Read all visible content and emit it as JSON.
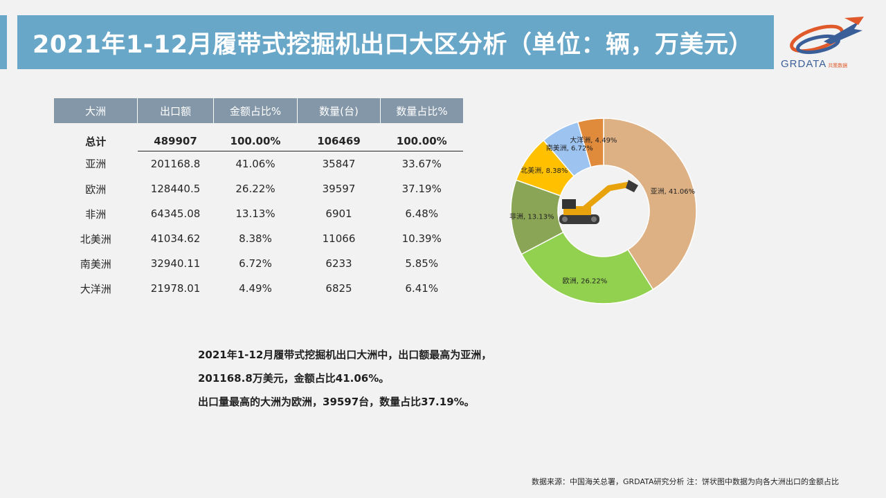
{
  "title": "2021年1-12月履带式挖掘机出口大区分析（单位：辆，万美元）",
  "logo": {
    "name": "GRDATA",
    "sub": "共策数据"
  },
  "table": {
    "headers": [
      "大洲",
      "出口额",
      "金额占比%",
      "数量(台)",
      "数量占比%"
    ],
    "total": [
      "总计",
      "489907",
      "100.00%",
      "106469",
      "100.00%"
    ],
    "rows": [
      [
        "亚洲",
        "201168.8",
        "41.06%",
        "35847",
        "33.67%"
      ],
      [
        "欧洲",
        "128440.5",
        "26.22%",
        "39597",
        "37.19%"
      ],
      [
        "非洲",
        "64345.08",
        "13.13%",
        "6901",
        "6.48%"
      ],
      [
        "北美洲",
        "41034.62",
        "8.38%",
        "11066",
        "10.39%"
      ],
      [
        "南美洲",
        "32940.11",
        "6.72%",
        "6233",
        "5.85%"
      ],
      [
        "大洋洲",
        "21978.01",
        "4.49%",
        "6825",
        "6.41%"
      ]
    ]
  },
  "chart_data": {
    "type": "pie",
    "donut": true,
    "categories": [
      "亚洲",
      "欧洲",
      "非洲",
      "北美洲",
      "南美洲",
      "大洋洲"
    ],
    "values": [
      41.06,
      26.22,
      13.13,
      8.38,
      6.72,
      4.49
    ],
    "labels": [
      "亚洲, 41.06%",
      "欧洲, 26.22%",
      "非洲, 13.13%",
      "北美洲, 8.38%",
      "南美洲, 6.72%",
      "大洋洲, 4.49%"
    ],
    "colors": [
      "#ddb184",
      "#92d050",
      "#8aa555",
      "#ffc000",
      "#9dc3f0",
      "#e08a3c"
    ],
    "start": "12 o'clock, clockwise"
  },
  "summary": {
    "line1": "2021年1-12月履带式挖掘机出口大洲中，出口额最高为亚洲，",
    "line2": "201168.8万美元，金额占比41.06%。",
    "line3": "出口量最高的大洲为欧洲，39597台，数量占比37.19%。"
  },
  "source": "数据来源：中国海关总署，GRDATA研究分析  注：饼状图中数据为向各大洲出口的金额占比"
}
